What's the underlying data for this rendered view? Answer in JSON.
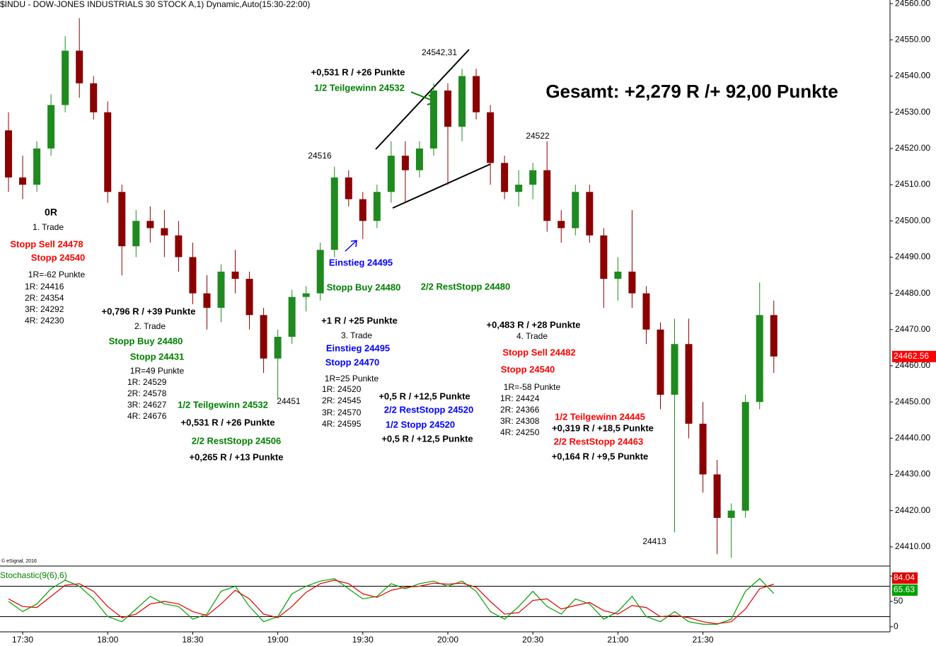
{
  "header": {
    "title": "$INDU - DOW-JONES INDUSTRIALS 30 STOCK A,1) Dynamic,Auto(15:30-22:00)",
    "copyright": "© eSignal, 2016"
  },
  "chart_data": [
    {
      "type": "candlestick",
      "x": [
        "17:25",
        "17:30",
        "17:35",
        "17:40",
        "17:45",
        "17:50",
        "17:55",
        "18:00",
        "18:05",
        "18:10",
        "18:15",
        "18:20",
        "18:25",
        "18:30",
        "18:35",
        "18:40",
        "18:45",
        "18:50",
        "18:55",
        "19:00",
        "19:05",
        "19:10",
        "19:15",
        "19:20",
        "19:25",
        "19:30",
        "19:35",
        "19:40",
        "19:45",
        "19:50",
        "19:55",
        "20:00",
        "20:05",
        "20:10",
        "20:15",
        "20:20",
        "20:25",
        "20:30",
        "20:35",
        "20:40",
        "20:45",
        "20:50",
        "20:55",
        "21:00",
        "21:05",
        "21:10",
        "21:15",
        "21:20",
        "21:25",
        "21:30",
        "21:35",
        "21:40",
        "21:45",
        "21:50",
        "21:55"
      ],
      "open": [
        24525,
        24512,
        24510,
        24520,
        24532,
        24547,
        24538,
        24530,
        24508,
        24493,
        24500,
        24498,
        24496,
        24490,
        24480,
        24476,
        24486,
        24484,
        24474,
        24462,
        24468,
        24479,
        24480,
        24492,
        24512,
        24506,
        24500,
        24508,
        24518,
        24514,
        24520,
        24536,
        24526,
        24540,
        24530,
        24516,
        24508,
        24510,
        24514,
        24500,
        24498,
        24508,
        24496,
        24484,
        24486,
        24480,
        24470,
        24452,
        24466,
        24444,
        24430,
        24418,
        24420,
        24450,
        24474
      ],
      "high": [
        24530,
        24518,
        24522,
        24535,
        24551,
        24556,
        24540,
        24533,
        24510,
        24503,
        24504,
        24503,
        24500,
        24494,
        24485,
        24488,
        24492,
        24486,
        24476,
        24470,
        24481,
        24482,
        24494,
        24515,
        24514,
        24508,
        24510,
        24522,
        24522,
        24522,
        24538,
        24538,
        24542,
        24542,
        24532,
        24518,
        24514,
        24516,
        24522,
        24503,
        24510,
        24510,
        24498,
        24490,
        24503,
        24482,
        24472,
        24473,
        24473,
        24450,
        24434,
        24422,
        24452,
        24483,
        24478
      ],
      "low": [
        24508,
        24506,
        24508,
        24518,
        24530,
        24534,
        24528,
        24505,
        24485,
        24490,
        24494,
        24490,
        24486,
        24477,
        24470,
        24472,
        24480,
        24470,
        24458,
        24451,
        24466,
        24475,
        24478,
        24490,
        24504,
        24495,
        24498,
        24505,
        24505,
        24512,
        24518,
        24510,
        24522,
        24528,
        24510,
        24506,
        24504,
        24506,
        24497,
        24494,
        24496,
        24494,
        24476,
        24478,
        24476,
        24466,
        24448,
        24414,
        24440,
        24425,
        24408,
        24407,
        24418,
        24448,
        24458
      ],
      "close": [
        24512,
        24510,
        24520,
        24532,
        24547,
        24538,
        24530,
        24508,
        24493,
        24500,
        24498,
        24496,
        24490,
        24480,
        24476,
        24486,
        24484,
        24474,
        24462,
        24468,
        24479,
        24480,
        24492,
        24512,
        24506,
        24500,
        24508,
        24518,
        24514,
        24520,
        24536,
        24526,
        24540,
        24530,
        24516,
        24508,
        24510,
        24514,
        24500,
        24498,
        24508,
        24496,
        24484,
        24486,
        24480,
        24470,
        24452,
        24466,
        24444,
        24430,
        24418,
        24420,
        24450,
        24474,
        24462.56
      ],
      "up_color": "#1f8a1f",
      "down_color": "#8b0000",
      "xlim": [
        "17:22",
        "22:36"
      ],
      "xticks": [
        "17:30",
        "18:00",
        "18:30",
        "19:00",
        "19:30",
        "20:00",
        "20:30",
        "21:00",
        "21:30"
      ],
      "ylim": [
        24404.7,
        24561
      ],
      "yticks": [
        {
          "value": 24410,
          "label": "24410.00"
        },
        {
          "value": 24420,
          "label": "24420.00"
        },
        {
          "value": 24430,
          "label": "24430.00"
        },
        {
          "value": 24440,
          "label": "24440.00"
        },
        {
          "value": 24450,
          "label": "24450.00"
        },
        {
          "value": 24460,
          "label": "24460.00"
        },
        {
          "value": 24470,
          "label": "24470.00"
        },
        {
          "value": 24480,
          "label": "24480.00"
        },
        {
          "value": 24490,
          "label": "24490.00"
        },
        {
          "value": 24500,
          "label": "24500.00"
        },
        {
          "value": 24510,
          "label": "24510.00"
        },
        {
          "value": 24520,
          "label": "24520.00"
        },
        {
          "value": 24530,
          "label": "24530.00"
        },
        {
          "value": 24540,
          "label": "24540.00"
        },
        {
          "value": 24550,
          "label": "24550.00"
        },
        {
          "value": 24560,
          "label": "24560.00"
        }
      ]
    },
    {
      "type": "line",
      "title": "Stochastic(9(6),6)",
      "x": [
        "17:25",
        "17:30",
        "17:35",
        "17:40",
        "17:45",
        "17:50",
        "17:55",
        "18:00",
        "18:05",
        "18:10",
        "18:15",
        "18:20",
        "18:25",
        "18:30",
        "18:35",
        "18:40",
        "18:45",
        "18:50",
        "18:55",
        "19:00",
        "19:05",
        "19:10",
        "19:15",
        "19:20",
        "19:25",
        "19:30",
        "19:35",
        "19:40",
        "19:45",
        "19:50",
        "19:55",
        "20:00",
        "20:05",
        "20:10",
        "20:15",
        "20:20",
        "20:25",
        "20:30",
        "20:35",
        "20:40",
        "20:45",
        "20:50",
        "20:55",
        "21:00",
        "21:05",
        "21:10",
        "21:15",
        "21:20",
        "21:25",
        "21:30",
        "21:35",
        "21:40",
        "21:45",
        "21:50",
        "21:55"
      ],
      "series": [
        {
          "color": "#00a000",
          "values": [
            50,
            30,
            45,
            75,
            92,
            80,
            55,
            20,
            10,
            35,
            60,
            45,
            40,
            15,
            25,
            70,
            80,
            40,
            10,
            20,
            65,
            80,
            90,
            95,
            75,
            55,
            60,
            85,
            75,
            85,
            90,
            80,
            90,
            70,
            30,
            15,
            40,
            70,
            40,
            25,
            55,
            45,
            15,
            30,
            60,
            20,
            10,
            30,
            10,
            5,
            5,
            15,
            70,
            95,
            65.63
          ]
        },
        {
          "color": "#e00000",
          "values": [
            55,
            40,
            38,
            60,
            82,
            85,
            70,
            40,
            18,
            25,
            45,
            50,
            45,
            30,
            22,
            45,
            72,
            55,
            25,
            18,
            40,
            68,
            85,
            92,
            85,
            65,
            58,
            72,
            78,
            80,
            86,
            84,
            86,
            78,
            50,
            25,
            28,
            52,
            55,
            35,
            42,
            48,
            32,
            25,
            42,
            38,
            20,
            22,
            18,
            10,
            6,
            10,
            35,
            75,
            84.04
          ]
        }
      ],
      "levels": [
        80,
        20
      ],
      "ylim": [
        -10,
        117
      ],
      "yticks": [
        0,
        50,
        100
      ]
    }
  ],
  "annotations": [
    {
      "text": "0R",
      "color": "#000000"
    },
    {
      "text": "1. Trade",
      "color": "#000000"
    },
    {
      "text": "Stopp Sell 24478",
      "color": "#ff0000"
    },
    {
      "text": "Stopp 24540",
      "color": "#ff0000"
    },
    {
      "text": "1R=-62 Punkte",
      "color": "#000000"
    },
    {
      "text": "1R: 24416",
      "color": "#000000"
    },
    {
      "text": "2R: 24354",
      "color": "#000000"
    },
    {
      "text": "3R: 24292",
      "color": "#000000"
    },
    {
      "text": "4R: 24230",
      "color": "#000000"
    },
    {
      "text": "+0,796 R / +39 Punkte",
      "color": "#000000"
    },
    {
      "text": "2. Trade",
      "color": "#000000"
    },
    {
      "text": "Stopp Buy 24480",
      "color": "#008000"
    },
    {
      "text": "Stopp 24431",
      "color": "#008000"
    },
    {
      "text": "1R=49 Punkte",
      "color": "#000000"
    },
    {
      "text": "1R: 24529",
      "color": "#000000"
    },
    {
      "text": "2R: 24578",
      "color": "#000000"
    },
    {
      "text": "3R: 24627",
      "color": "#000000"
    },
    {
      "text": "4R: 24676",
      "color": "#000000"
    },
    {
      "text": "1/2 Teilgewinn 24532",
      "color": "#008000"
    },
    {
      "text": "24451",
      "color": "#000000"
    },
    {
      "text": "+0,531 R / +26 Punkte",
      "color": "#000000"
    },
    {
      "text": "2/2 RestStopp 24506",
      "color": "#008000"
    },
    {
      "text": "+0,265 R / +13 Punkte",
      "color": "#000000"
    },
    {
      "text": "24516",
      "color": "#000000"
    },
    {
      "text": "+0,531 R / +26 Punkte",
      "color": "#000000"
    },
    {
      "text": "1/2 Teilgewinn 24532",
      "color": "#008000"
    },
    {
      "text": "24542,31",
      "color": "#000000"
    },
    {
      "text": "Gesamt: +2,279 R /+ 92,00 Punkte",
      "color": "#000000"
    },
    {
      "text": "24522",
      "color": "#000000"
    },
    {
      "text": "Einstieg 24495",
      "color": "#0000ff"
    },
    {
      "text": "Stopp Buy 24480",
      "color": "#008000"
    },
    {
      "text": "2/2 RestStopp 24480",
      "color": "#008000"
    },
    {
      "text": "+1 R / +25 Punkte",
      "color": "#000000"
    },
    {
      "text": "3. Trade",
      "color": "#000000"
    },
    {
      "text": "Einstieg 24495",
      "color": "#0000ff"
    },
    {
      "text": "Stopp 24470",
      "color": "#0000ff"
    },
    {
      "text": "1R=25 Punkte",
      "color": "#000000"
    },
    {
      "text": "1R: 24520",
      "color": "#000000"
    },
    {
      "text": "2R: 24545",
      "color": "#000000"
    },
    {
      "text": "3R: 24570",
      "color": "#000000"
    },
    {
      "text": "4R: 24595",
      "color": "#000000"
    },
    {
      "text": "+0,5 R / +12,5 Punkte",
      "color": "#000000"
    },
    {
      "text": "2/2 RestStopp 24520",
      "color": "#0000ff"
    },
    {
      "text": "1/2 Stopp 24520",
      "color": "#0000ff"
    },
    {
      "text": "+0,5 R / +12,5 Punkte",
      "color": "#000000"
    },
    {
      "text": "+0,483 R / +28 Punkte",
      "color": "#000000"
    },
    {
      "text": "4. Trade",
      "color": "#000000"
    },
    {
      "text": "Stopp Sell 24482",
      "color": "#ff0000"
    },
    {
      "text": "Stopp 24540",
      "color": "#ff0000"
    },
    {
      "text": "1R=-58 Punkte",
      "color": "#000000"
    },
    {
      "text": "1R: 24424",
      "color": "#000000"
    },
    {
      "text": "2R: 24366",
      "color": "#000000"
    },
    {
      "text": "3R: 24308",
      "color": "#000000"
    },
    {
      "text": "4R: 24250",
      "color": "#000000"
    },
    {
      "text": "1/2 Teilgewinn 24445",
      "color": "#ff0000"
    },
    {
      "text": "+0,319 R / +18,5 Punkte",
      "color": "#000000"
    },
    {
      "text": "2/2 RestStopp 24463",
      "color": "#ff0000"
    },
    {
      "text": "+0,164 R / +9,5 Punkte",
      "color": "#000000"
    },
    {
      "text": "24413",
      "color": "#000000"
    }
  ]
}
